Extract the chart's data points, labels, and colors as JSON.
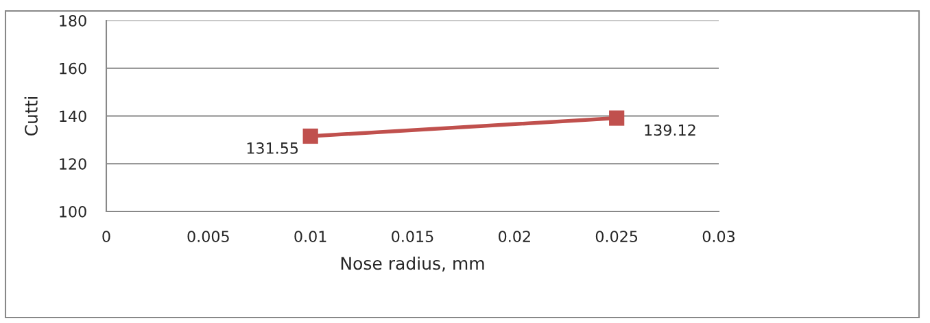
{
  "chart_data": {
    "type": "line",
    "xlabel": "Nose radius, mm",
    "ylabel": "Cutti",
    "x": [
      0.01,
      0.025
    ],
    "series": [
      {
        "color": "#c0504d",
        "values": [
          131.55,
          139.12
        ]
      }
    ],
    "xlim": [
      0,
      0.03
    ],
    "xticks": [
      0,
      0.005,
      0.01,
      0.015,
      0.02,
      0.025,
      0.03
    ],
    "ylim": [
      100,
      180
    ],
    "yticks": [
      100,
      120,
      140,
      160,
      180
    ],
    "grid": "y",
    "marker": "square",
    "line_style": "solid",
    "data_labels": true,
    "legend": false
  }
}
